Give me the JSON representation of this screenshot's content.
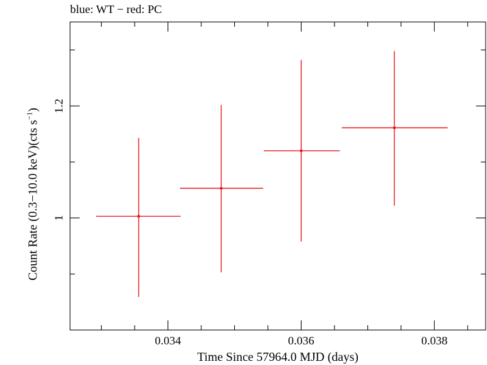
{
  "chart_data": {
    "type": "scatter",
    "title": "blue: WT − red: PC",
    "xlabel": "Time Since 57964.0 MJD (days)",
    "ylabel": {
      "prefix": "Count Rate (0.3−10.0 keV)(cts s",
      "exponent": "−1",
      "suffix": ")"
    },
    "xlim": [
      0.03253,
      0.03877
    ],
    "ylim": [
      0.8,
      1.35
    ],
    "x_ticks": [
      0.034,
      0.036,
      0.038
    ],
    "x_tick_labels": [
      "0.034",
      "0.036",
      "0.038"
    ],
    "y_ticks": [
      1.0,
      1.2
    ],
    "y_tick_labels": [
      "1",
      "1.2"
    ],
    "series": [
      {
        "name": "PC",
        "color": "#e8141c",
        "points": [
          {
            "x": 0.03356,
            "x_err_low": 0.03292,
            "x_err_high": 0.03419,
            "y": 1.003,
            "y_err_low": 0.859,
            "y_err_high": 1.143
          },
          {
            "x": 0.0348,
            "x_err_low": 0.03418,
            "x_err_high": 0.03543,
            "y": 1.053,
            "y_err_low": 0.903,
            "y_err_high": 1.202
          },
          {
            "x": 0.036,
            "x_err_low": 0.03544,
            "x_err_high": 0.03658,
            "y": 1.12,
            "y_err_low": 0.958,
            "y_err_high": 1.282
          },
          {
            "x": 0.0374,
            "x_err_low": 0.03661,
            "x_err_high": 0.0382,
            "y": 1.161,
            "y_err_low": 1.022,
            "y_err_high": 1.298
          }
        ]
      }
    ],
    "grid": false,
    "legend": "none"
  }
}
